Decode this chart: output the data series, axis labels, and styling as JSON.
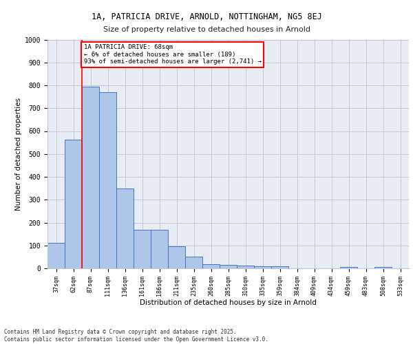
{
  "title_line1": "1A, PATRICIA DRIVE, ARNOLD, NOTTINGHAM, NG5 8EJ",
  "title_line2": "Size of property relative to detached houses in Arnold",
  "xlabel": "Distribution of detached houses by size in Arnold",
  "ylabel": "Number of detached properties",
  "categories": [
    "37sqm",
    "62sqm",
    "87sqm",
    "111sqm",
    "136sqm",
    "161sqm",
    "186sqm",
    "211sqm",
    "235sqm",
    "260sqm",
    "285sqm",
    "310sqm",
    "335sqm",
    "359sqm",
    "384sqm",
    "409sqm",
    "434sqm",
    "459sqm",
    "483sqm",
    "508sqm",
    "533sqm"
  ],
  "values": [
    112,
    563,
    793,
    770,
    350,
    168,
    168,
    97,
    52,
    18,
    14,
    12,
    10,
    10,
    1,
    1,
    1,
    5,
    1,
    5,
    1
  ],
  "bar_color": "#aec6e8",
  "bar_edge_color": "#4472c4",
  "grid_color": "#c0c8d8",
  "background_color": "#e8edf5",
  "annotation_text": "1A PATRICIA DRIVE: 68sqm\n← 6% of detached houses are smaller (189)\n93% of semi-detached houses are larger (2,741) →",
  "annotation_box_color": "white",
  "annotation_box_edge_color": "red",
  "footer_line1": "Contains HM Land Registry data © Crown copyright and database right 2025.",
  "footer_line2": "Contains public sector information licensed under the Open Government Licence v3.0.",
  "ylim": [
    0,
    1000
  ],
  "yticks": [
    0,
    100,
    200,
    300,
    400,
    500,
    600,
    700,
    800,
    900,
    1000
  ]
}
